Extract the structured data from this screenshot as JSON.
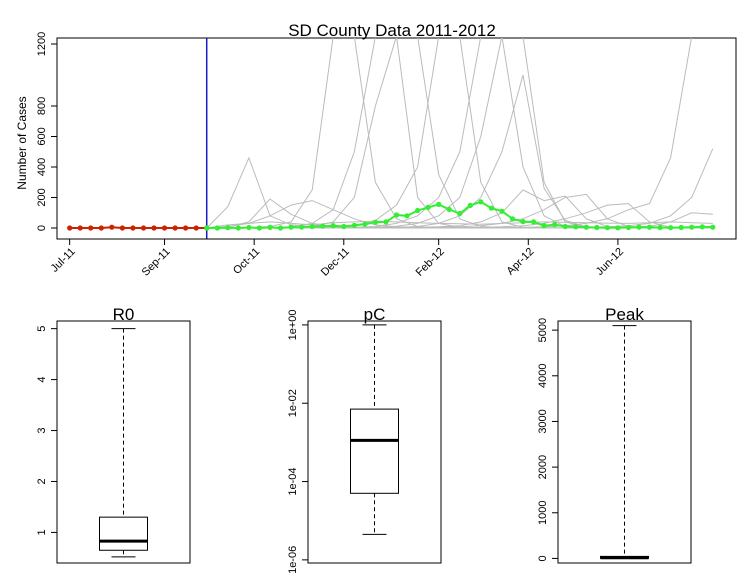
{
  "chart_data": [
    {
      "type": "line",
      "title": "SD County Data 2011-2012",
      "xlabel": "",
      "ylabel": "Number of Cases",
      "x_tick_labels": [
        "Jul-11",
        "Sep-11",
        "Oct-11",
        "Dec-11",
        "Feb-12",
        "Apr-12",
        "Jun-12"
      ],
      "y_ticks": [
        "0",
        "200",
        "400",
        "600",
        "800",
        "1200"
      ],
      "ylim": [
        -30,
        1250
      ],
      "y_axis_break": [
        800,
        1200
      ],
      "grid": false,
      "vertical_marker_week": 13,
      "series": [
        {
          "role": "observed-before-marker",
          "color": "#cc2200",
          "x": [
            0,
            1,
            2,
            3,
            4,
            5,
            6,
            7,
            8,
            9,
            10,
            11,
            12,
            13
          ],
          "values": [
            0,
            0,
            0,
            0,
            5,
            0,
            0,
            0,
            0,
            0,
            0,
            0,
            0,
            0
          ]
        },
        {
          "role": "observed-after-marker",
          "color": "#33ee33",
          "x": [
            13,
            14,
            15,
            16,
            17,
            18,
            19,
            20,
            21,
            22,
            23,
            24,
            25,
            26,
            27,
            28,
            29,
            30,
            31,
            32,
            33,
            34,
            35,
            36,
            37,
            38,
            39,
            40,
            41,
            42,
            43,
            44,
            45,
            46,
            47,
            48,
            49,
            50,
            51,
            52,
            53,
            54,
            55,
            56,
            57,
            58,
            59,
            60,
            61
          ],
          "values": [
            0,
            0,
            2,
            0,
            3,
            0,
            4,
            0,
            6,
            5,
            10,
            12,
            15,
            10,
            18,
            25,
            38,
            40,
            85,
            80,
            115,
            135,
            155,
            122,
            95,
            148,
            172,
            130,
            110,
            60,
            42,
            40,
            15,
            22,
            10,
            8,
            5,
            3,
            2,
            1,
            3,
            6,
            5,
            3,
            2,
            3,
            5,
            8,
            5
          ]
        },
        {
          "role": "simulation",
          "color": "#bbbbbb",
          "x": [
            13,
            15,
            17,
            19,
            21,
            23,
            25,
            27,
            29,
            31,
            33,
            35,
            37,
            39,
            41,
            43,
            45,
            47,
            49,
            51,
            53,
            55,
            57,
            59,
            61
          ],
          "values": [
            0,
            140,
            460,
            80,
            20,
            10,
            5,
            3,
            2,
            1,
            0,
            0,
            0,
            0,
            0,
            0,
            0,
            0,
            0,
            0,
            0,
            0,
            0,
            0,
            0
          ]
        },
        {
          "role": "simulation",
          "color": "#bbbbbb",
          "x": [
            13,
            15,
            17,
            19,
            21,
            23,
            25,
            27,
            29,
            31,
            33,
            35,
            37,
            39,
            41,
            43,
            45,
            47,
            49,
            51,
            53,
            55,
            57,
            59,
            61
          ],
          "values": [
            0,
            5,
            40,
            190,
            90,
            30,
            10,
            5,
            2,
            1,
            0,
            0,
            0,
            0,
            0,
            0,
            0,
            0,
            0,
            0,
            0,
            0,
            0,
            0,
            0
          ]
        },
        {
          "role": "simulation",
          "color": "#bbbbbb",
          "x": [
            13,
            15,
            17,
            19,
            21,
            23,
            25,
            27,
            29,
            31,
            33,
            35,
            37,
            39,
            41,
            43,
            45,
            47,
            49,
            51,
            53,
            55,
            57,
            59,
            61
          ],
          "values": [
            0,
            10,
            30,
            80,
            150,
            180,
            120,
            60,
            20,
            8,
            3,
            1,
            0,
            0,
            0,
            0,
            0,
            0,
            0,
            0,
            0,
            0,
            0,
            0,
            0
          ]
        },
        {
          "role": "simulation",
          "color": "#bbbbbb",
          "x": [
            13,
            15,
            17,
            19,
            21,
            23,
            25,
            27,
            29,
            31,
            33,
            35,
            37,
            39,
            41,
            43,
            45,
            47,
            49,
            51,
            53,
            55,
            57,
            59,
            61
          ],
          "values": [
            0,
            1,
            3,
            10,
            40,
            250,
            1250,
            1250,
            300,
            60,
            10,
            2,
            0,
            0,
            0,
            0,
            0,
            0,
            0,
            0,
            0,
            0,
            0,
            0,
            0
          ]
        },
        {
          "role": "simulation",
          "color": "#bbbbbb",
          "x": [
            13,
            15,
            17,
            19,
            21,
            23,
            25,
            27,
            29,
            31,
            33,
            35,
            37,
            39,
            41,
            43,
            45,
            47,
            49,
            51,
            53,
            55,
            57,
            59,
            61
          ],
          "values": [
            0,
            0,
            1,
            2,
            8,
            30,
            120,
            500,
            1250,
            1250,
            200,
            30,
            5,
            1,
            0,
            0,
            0,
            0,
            0,
            0,
            0,
            0,
            0,
            0,
            0
          ]
        },
        {
          "role": "simulation",
          "color": "#bbbbbb",
          "x": [
            13,
            15,
            17,
            19,
            21,
            23,
            25,
            27,
            29,
            31,
            33,
            35,
            37,
            39,
            41,
            43,
            45,
            47,
            49,
            51,
            53,
            55,
            57,
            59,
            61
          ],
          "values": [
            0,
            0,
            0,
            1,
            3,
            10,
            40,
            200,
            800,
            1250,
            1250,
            350,
            60,
            10,
            2,
            0,
            0,
            0,
            0,
            0,
            0,
            0,
            0,
            0,
            0
          ]
        },
        {
          "role": "simulation",
          "color": "#bbbbbb",
          "x": [
            13,
            15,
            17,
            19,
            21,
            23,
            25,
            27,
            29,
            31,
            33,
            35,
            37,
            39,
            41,
            43,
            45,
            47,
            49,
            51,
            53,
            55,
            57,
            59,
            61
          ],
          "values": [
            0,
            0,
            0,
            0,
            1,
            2,
            5,
            15,
            50,
            150,
            400,
            1250,
            1250,
            300,
            40,
            5,
            1,
            0,
            0,
            0,
            0,
            0,
            0,
            0,
            0
          ]
        },
        {
          "role": "simulation",
          "color": "#bbbbbb",
          "x": [
            13,
            15,
            17,
            19,
            21,
            23,
            25,
            27,
            29,
            31,
            33,
            35,
            37,
            39,
            41,
            43,
            45,
            47,
            49,
            51,
            53,
            55,
            57,
            59,
            61
          ],
          "values": [
            0,
            0,
            0,
            0,
            0,
            1,
            2,
            5,
            10,
            30,
            80,
            200,
            500,
            1250,
            1250,
            400,
            80,
            10,
            2,
            0,
            0,
            0,
            0,
            0,
            0
          ]
        },
        {
          "role": "simulation",
          "color": "#bbbbbb",
          "x": [
            13,
            15,
            17,
            19,
            21,
            23,
            25,
            27,
            29,
            31,
            33,
            35,
            37,
            39,
            41,
            43,
            45,
            47,
            49,
            51,
            53,
            55,
            57,
            59,
            61
          ],
          "values": [
            0,
            0,
            0,
            0,
            0,
            0,
            1,
            2,
            5,
            12,
            30,
            80,
            200,
            600,
            1250,
            1250,
            300,
            40,
            5,
            1,
            0,
            0,
            0,
            0,
            0
          ]
        },
        {
          "role": "simulation",
          "color": "#bbbbbb",
          "x": [
            13,
            15,
            17,
            19,
            21,
            23,
            25,
            27,
            29,
            31,
            33,
            35,
            37,
            39,
            41,
            43,
            45,
            47,
            49,
            51,
            53,
            55,
            57,
            59,
            61
          ],
          "values": [
            0,
            0,
            0,
            0,
            0,
            0,
            0,
            1,
            2,
            4,
            10,
            30,
            80,
            200,
            500,
            1000,
            260,
            50,
            8,
            2,
            0,
            0,
            0,
            0,
            0
          ]
        },
        {
          "role": "simulation",
          "color": "#bbbbbb",
          "x": [
            13,
            15,
            17,
            19,
            21,
            23,
            25,
            27,
            29,
            31,
            33,
            35,
            37,
            39,
            41,
            43,
            45,
            47,
            49,
            51,
            53,
            55,
            57,
            59,
            61
          ],
          "values": [
            0,
            0,
            0,
            0,
            0,
            0,
            0,
            0,
            1,
            2,
            4,
            8,
            15,
            40,
            100,
            250,
            180,
            210,
            60,
            10,
            2,
            0,
            0,
            0,
            0
          ]
        },
        {
          "role": "simulation",
          "color": "#bbbbbb",
          "x": [
            13,
            15,
            17,
            19,
            21,
            23,
            25,
            27,
            29,
            31,
            33,
            35,
            37,
            39,
            41,
            43,
            45,
            47,
            49,
            51,
            53,
            55,
            57,
            59,
            61
          ],
          "values": [
            0,
            0,
            0,
            0,
            0,
            0,
            0,
            0,
            0,
            1,
            2,
            4,
            8,
            15,
            30,
            60,
            120,
            200,
            220,
            60,
            10,
            2,
            0,
            0,
            0
          ]
        },
        {
          "role": "simulation",
          "color": "#bbbbbb",
          "x": [
            13,
            15,
            17,
            19,
            21,
            23,
            25,
            27,
            29,
            31,
            33,
            35,
            37,
            39,
            41,
            43,
            45,
            47,
            49,
            51,
            53,
            55,
            57,
            59,
            61
          ],
          "values": [
            0,
            0,
            0,
            0,
            0,
            0,
            0,
            0,
            0,
            0,
            0,
            1,
            2,
            4,
            8,
            15,
            30,
            60,
            100,
            150,
            160,
            40,
            5,
            1,
            0
          ]
        },
        {
          "role": "simulation",
          "color": "#bbbbbb",
          "x": [
            13,
            15,
            17,
            19,
            21,
            23,
            25,
            27,
            29,
            31,
            33,
            35,
            37,
            39,
            41,
            43,
            45,
            47,
            49,
            51,
            53,
            55,
            57,
            59,
            61
          ],
          "values": [
            0,
            0,
            0,
            0,
            0,
            0,
            0,
            0,
            0,
            0,
            0,
            0,
            0,
            1,
            2,
            4,
            8,
            15,
            30,
            60,
            120,
            160,
            460,
            1250,
            1250
          ]
        },
        {
          "role": "simulation",
          "color": "#bbbbbb",
          "x": [
            13,
            15,
            17,
            19,
            21,
            23,
            25,
            27,
            29,
            31,
            33,
            35,
            37,
            39,
            41,
            43,
            45,
            47,
            49,
            51,
            53,
            55,
            57,
            59,
            61
          ],
          "values": [
            0,
            0,
            0,
            0,
            0,
            0,
            0,
            0,
            0,
            0,
            0,
            0,
            0,
            0,
            0,
            0,
            1,
            2,
            4,
            8,
            15,
            30,
            80,
            200,
            520
          ]
        },
        {
          "role": "simulation",
          "color": "#bbbbbb",
          "x": [
            13,
            15,
            17,
            19,
            21,
            23,
            25,
            27,
            29,
            31,
            33,
            35,
            37,
            39,
            41,
            43,
            45,
            47,
            49,
            51,
            53,
            55,
            57,
            59,
            61
          ],
          "values": [
            0,
            0,
            0,
            0,
            0,
            0,
            0,
            0,
            0,
            0,
            0,
            0,
            0,
            0,
            0,
            0,
            0,
            0,
            0,
            1,
            3,
            10,
            40,
            100,
            90
          ]
        },
        {
          "role": "simulation",
          "color": "#bbbbbb",
          "x": [
            13,
            15,
            17,
            19,
            21,
            23,
            25,
            27,
            29,
            31,
            33,
            35,
            37,
            39,
            41,
            43,
            45,
            47,
            49,
            51,
            53,
            55,
            57,
            59,
            61
          ],
          "values": [
            0,
            20,
            30,
            40,
            30,
            20,
            35,
            40,
            45,
            40,
            35,
            30,
            28,
            25,
            30,
            35,
            40,
            38,
            35,
            32,
            30,
            35,
            40,
            35,
            30
          ]
        }
      ]
    },
    {
      "type": "box",
      "title": "R0",
      "y_ticks": [
        "1",
        "2",
        "3",
        "4",
        "5"
      ],
      "ylim": [
        0.4,
        5.15
      ],
      "stats": {
        "min": 0.52,
        "q1": 0.65,
        "median": 0.83,
        "q3": 1.3,
        "max": 5.0
      }
    },
    {
      "type": "box",
      "title": "pC",
      "log_scale": true,
      "y_ticks": [
        "1e-06",
        "1e-04",
        "1e-02",
        "1e+00"
      ],
      "ylim_log10": [
        -6.08,
        0.1
      ],
      "stats_log10": {
        "min": -5.35,
        "q1": -4.3,
        "median": -2.95,
        "q3": -2.15,
        "max": 0.0
      }
    },
    {
      "type": "box",
      "title": "Peak",
      "y_ticks": [
        "0",
        "1000",
        "2000",
        "3000",
        "4000",
        "5000"
      ],
      "ylim": [
        -100,
        5200
      ],
      "stats": {
        "min": 0,
        "q1": 5,
        "median": 15,
        "q3": 45,
        "max": 5100
      }
    }
  ]
}
